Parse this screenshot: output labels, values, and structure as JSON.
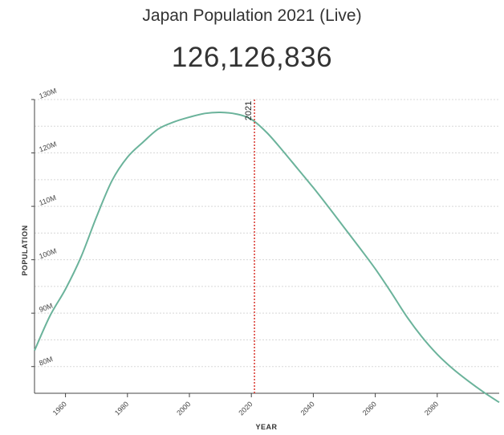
{
  "header": {
    "title": "Japan Population 2021 (Live)",
    "live_count": "126,126,836"
  },
  "chart_data": {
    "type": "line",
    "title": "Japan Population 2021 (Live)",
    "xlabel": "YEAR",
    "ylabel": "POPULATION",
    "xlim": [
      1950,
      2100
    ],
    "ylim": [
      75000000,
      130000000
    ],
    "x_ticks": [
      1960,
      1980,
      2000,
      2020,
      2040,
      2060,
      2080
    ],
    "y_ticks": [
      {
        "value": 80000000,
        "label": "80M"
      },
      {
        "value": 90000000,
        "label": "90M"
      },
      {
        "value": 100000000,
        "label": "100M"
      },
      {
        "value": 110000000,
        "label": "110M"
      },
      {
        "value": 120000000,
        "label": "120M"
      },
      {
        "value": 130000000,
        "label": "130M"
      }
    ],
    "grid": true,
    "line_color": "#6bb39b",
    "marker": {
      "x": 2021,
      "label": "2021",
      "color": "#d9342b"
    },
    "series": [
      {
        "x": [
          1950,
          1955,
          1960,
          1965,
          1970,
          1975,
          1980,
          1985,
          1990,
          1995,
          2000,
          2005,
          2010,
          2015,
          2020,
          2025,
          2030,
          2035,
          2040,
          2045,
          2050,
          2055,
          2060,
          2065,
          2070,
          2075,
          2080,
          2085,
          2090,
          2095,
          2100
        ],
        "values": [
          83000000,
          89500000,
          94500000,
          100500000,
          108000000,
          114800000,
          119200000,
          122000000,
          124500000,
          125800000,
          126700000,
          127400000,
          127600000,
          127300000,
          126300000,
          123800000,
          120500000,
          117000000,
          113500000,
          109800000,
          106000000,
          102200000,
          98300000,
          94000000,
          89500000,
          85600000,
          82300000,
          79600000,
          77300000,
          75200000,
          73300000
        ]
      }
    ]
  }
}
